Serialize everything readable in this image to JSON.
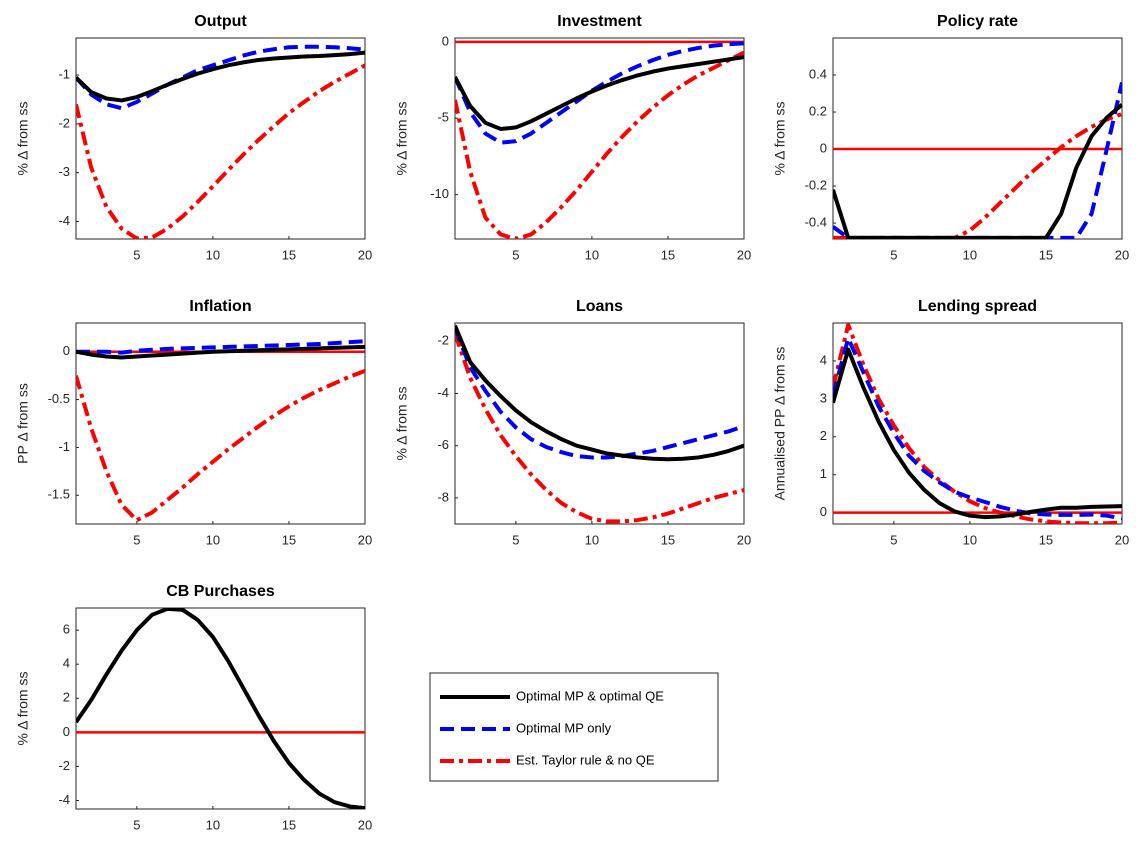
{
  "chart_data": [
    {
      "type": "line",
      "title": "Output",
      "ylabel": "% Δ from ss",
      "x": [
        1,
        2,
        3,
        4,
        5,
        6,
        7,
        8,
        9,
        10,
        11,
        12,
        13,
        14,
        15,
        16,
        17,
        18,
        19,
        20
      ],
      "xlim": [
        1,
        20
      ],
      "xticks": [
        5,
        10,
        15,
        20
      ],
      "ylim": [
        -4.36,
        -0.24
      ],
      "yticks": [
        -4,
        -3,
        -2,
        -1
      ],
      "series": [
        {
          "name": "Optimal MP & optimal QE",
          "color": "#000000",
          "style": "solid",
          "values": [
            -1.05,
            -1.35,
            -1.48,
            -1.52,
            -1.45,
            -1.33,
            -1.2,
            -1.08,
            -0.97,
            -0.88,
            -0.8,
            -0.74,
            -0.69,
            -0.66,
            -0.64,
            -0.62,
            -0.61,
            -0.59,
            -0.57,
            -0.54
          ]
        },
        {
          "name": "Optimal MP only",
          "color": "#0000ff",
          "style": "dashed",
          "values": [
            -1.05,
            -1.4,
            -1.6,
            -1.68,
            -1.55,
            -1.38,
            -1.2,
            -1.05,
            -0.9,
            -0.8,
            -0.7,
            -0.6,
            -0.52,
            -0.47,
            -0.43,
            -0.42,
            -0.42,
            -0.43,
            -0.45,
            -0.48
          ]
        },
        {
          "name": "Est. Taylor rule & no QE",
          "color": "#ff0000",
          "style": "dashdot",
          "values": [
            -1.6,
            -2.9,
            -3.7,
            -4.15,
            -4.35,
            -4.33,
            -4.15,
            -3.9,
            -3.6,
            -3.28,
            -2.95,
            -2.63,
            -2.33,
            -2.05,
            -1.78,
            -1.55,
            -1.33,
            -1.14,
            -0.97,
            -0.8
          ]
        }
      ]
    },
    {
      "type": "line",
      "title": "Investment",
      "ylabel": "% Δ from ss",
      "x": [
        1,
        2,
        3,
        4,
        5,
        6,
        7,
        8,
        9,
        10,
        11,
        12,
        13,
        14,
        15,
        16,
        17,
        18,
        19,
        20
      ],
      "xlim": [
        1,
        20
      ],
      "xticks": [
        5,
        10,
        15,
        20
      ],
      "ylim": [
        -12.9,
        0.25
      ],
      "yticks": [
        -10,
        -5,
        0
      ],
      "hline": 0,
      "series": [
        {
          "color": "#000000",
          "style": "solid",
          "values": [
            -2.3,
            -4.2,
            -5.3,
            -5.7,
            -5.6,
            -5.2,
            -4.7,
            -4.2,
            -3.7,
            -3.25,
            -2.85,
            -2.5,
            -2.2,
            -1.95,
            -1.75,
            -1.6,
            -1.45,
            -1.3,
            -1.15,
            -1.0
          ]
        },
        {
          "color": "#0000ff",
          "style": "dashed",
          "values": [
            -2.3,
            -4.6,
            -6.0,
            -6.6,
            -6.5,
            -6.0,
            -5.3,
            -4.6,
            -3.9,
            -3.2,
            -2.6,
            -2.05,
            -1.6,
            -1.2,
            -0.85,
            -0.6,
            -0.4,
            -0.25,
            -0.15,
            -0.1
          ]
        },
        {
          "color": "#ff0000",
          "style": "dashdot",
          "values": [
            -3.8,
            -8.5,
            -11.5,
            -12.6,
            -12.9,
            -12.6,
            -11.8,
            -10.8,
            -9.7,
            -8.5,
            -7.3,
            -6.2,
            -5.2,
            -4.3,
            -3.5,
            -2.8,
            -2.2,
            -1.7,
            -1.2,
            -0.7
          ]
        }
      ]
    },
    {
      "type": "line",
      "title": "Policy rate",
      "ylabel": "% Δ from ss",
      "x": [
        1,
        2,
        3,
        4,
        5,
        6,
        7,
        8,
        9,
        10,
        11,
        12,
        13,
        14,
        15,
        16,
        17,
        18,
        19,
        20
      ],
      "xlim": [
        1,
        20
      ],
      "xticks": [
        5,
        10,
        15,
        20
      ],
      "ylim": [
        -0.486,
        0.6
      ],
      "yticks": [
        -0.4,
        -0.2,
        0,
        0.2,
        0.4
      ],
      "hline": 0,
      "series": [
        {
          "color": "#000000",
          "style": "solid",
          "values": [
            -0.22,
            -0.48,
            -0.48,
            -0.48,
            -0.48,
            -0.48,
            -0.48,
            -0.48,
            -0.48,
            -0.48,
            -0.48,
            -0.48,
            -0.48,
            -0.48,
            -0.48,
            -0.35,
            -0.1,
            0.07,
            0.17,
            0.24
          ]
        },
        {
          "color": "#0000ff",
          "style": "dashed",
          "values": [
            -0.42,
            -0.48,
            -0.48,
            -0.48,
            -0.48,
            -0.48,
            -0.48,
            -0.48,
            -0.48,
            -0.48,
            -0.48,
            -0.48,
            -0.48,
            -0.48,
            -0.48,
            -0.48,
            -0.48,
            -0.35,
            0.0,
            0.36
          ]
        },
        {
          "color": "#ff0000",
          "style": "dashdot",
          "values": [
            -0.48,
            -0.48,
            -0.48,
            -0.48,
            -0.48,
            -0.48,
            -0.48,
            -0.48,
            -0.48,
            -0.44,
            -0.37,
            -0.29,
            -0.21,
            -0.13,
            -0.06,
            0.01,
            0.07,
            0.12,
            0.16,
            0.19
          ]
        }
      ]
    },
    {
      "type": "line",
      "title": "Inflation",
      "ylabel": "PP Δ from ss",
      "x": [
        1,
        2,
        3,
        4,
        5,
        6,
        7,
        8,
        9,
        10,
        11,
        12,
        13,
        14,
        15,
        16,
        17,
        18,
        19,
        20
      ],
      "xlim": [
        1,
        20
      ],
      "xticks": [
        5,
        10,
        15,
        20
      ],
      "ylim": [
        -1.8,
        0.3
      ],
      "yticks": [
        -1.5,
        -1,
        -0.5,
        0
      ],
      "hline": 0,
      "series": [
        {
          "color": "#000000",
          "style": "solid",
          "values": [
            0,
            -0.03,
            -0.05,
            -0.06,
            -0.05,
            -0.04,
            -0.03,
            -0.02,
            -0.01,
            0,
            0.005,
            0.01,
            0.015,
            0.02,
            0.025,
            0.03,
            0.035,
            0.04,
            0.045,
            0.05
          ]
        },
        {
          "color": "#0000ff",
          "style": "dashed",
          "values": [
            0,
            0,
            0,
            -0.01,
            0.01,
            0.02,
            0.03,
            0.035,
            0.04,
            0.045,
            0.05,
            0.055,
            0.06,
            0.065,
            0.07,
            0.075,
            0.08,
            0.09,
            0.1,
            0.11
          ]
        },
        {
          "color": "#ff0000",
          "style": "dashdot",
          "values": [
            -0.25,
            -0.8,
            -1.25,
            -1.6,
            -1.76,
            -1.68,
            -1.55,
            -1.42,
            -1.28,
            -1.15,
            -1.02,
            -0.9,
            -0.78,
            -0.67,
            -0.57,
            -0.48,
            -0.4,
            -0.33,
            -0.26,
            -0.2
          ]
        }
      ]
    },
    {
      "type": "line",
      "title": "Loans",
      "ylabel": "% Δ from ss",
      "x": [
        1,
        2,
        3,
        4,
        5,
        6,
        7,
        8,
        9,
        10,
        11,
        12,
        13,
        14,
        15,
        16,
        17,
        18,
        19,
        20
      ],
      "xlim": [
        1,
        20
      ],
      "xticks": [
        5,
        10,
        15,
        20
      ],
      "ylim": [
        -9.0,
        -1.3
      ],
      "yticks": [
        -8,
        -6,
        -4,
        -2
      ],
      "series": [
        {
          "color": "#000000",
          "style": "solid",
          "values": [
            -1.4,
            -2.8,
            -3.5,
            -4.1,
            -4.65,
            -5.1,
            -5.45,
            -5.75,
            -6.0,
            -6.15,
            -6.3,
            -6.38,
            -6.45,
            -6.5,
            -6.52,
            -6.5,
            -6.45,
            -6.35,
            -6.2,
            -6.0
          ]
        },
        {
          "color": "#0000ff",
          "style": "dashed",
          "values": [
            -1.5,
            -3.0,
            -3.9,
            -4.7,
            -5.3,
            -5.75,
            -6.05,
            -6.25,
            -6.4,
            -6.45,
            -6.45,
            -6.4,
            -6.3,
            -6.2,
            -6.05,
            -5.9,
            -5.75,
            -5.6,
            -5.45,
            -5.25
          ]
        },
        {
          "color": "#ff0000",
          "style": "dashdot",
          "values": [
            -1.7,
            -3.4,
            -4.6,
            -5.6,
            -6.4,
            -7.1,
            -7.7,
            -8.2,
            -8.55,
            -8.8,
            -8.9,
            -8.9,
            -8.85,
            -8.75,
            -8.6,
            -8.4,
            -8.2,
            -8.0,
            -7.85,
            -7.7
          ]
        }
      ]
    },
    {
      "type": "line",
      "title": "Lending spread",
      "ylabel": "Annualised PP Δ from ss",
      "x": [
        1,
        2,
        3,
        4,
        5,
        6,
        7,
        8,
        9,
        10,
        11,
        12,
        13,
        14,
        15,
        16,
        17,
        18,
        19,
        20
      ],
      "xlim": [
        1,
        20
      ],
      "xticks": [
        5,
        10,
        15,
        20
      ],
      "ylim": [
        -0.3,
        5.0
      ],
      "yticks": [
        0,
        1,
        2,
        3,
        4
      ],
      "hline": 0,
      "series": [
        {
          "color": "#000000",
          "style": "solid",
          "values": [
            2.9,
            4.3,
            3.3,
            2.4,
            1.65,
            1.05,
            0.6,
            0.25,
            0.03,
            -0.08,
            -0.12,
            -0.1,
            -0.05,
            0.02,
            0.08,
            0.13,
            0.13,
            0.15,
            0.16,
            0.17
          ]
        },
        {
          "color": "#0000ff",
          "style": "dashed",
          "values": [
            3.1,
            4.6,
            3.7,
            2.8,
            2.1,
            1.5,
            1.1,
            0.8,
            0.55,
            0.4,
            0.28,
            0.15,
            0.05,
            -0.02,
            -0.05,
            -0.06,
            -0.06,
            -0.05,
            -0.08,
            -0.15
          ]
        },
        {
          "color": "#ff0000",
          "style": "dashdot",
          "values": [
            3.3,
            4.95,
            3.9,
            3.0,
            2.3,
            1.7,
            1.2,
            0.85,
            0.55,
            0.3,
            0.12,
            0.0,
            -0.1,
            -0.18,
            -0.23,
            -0.26,
            -0.28,
            -0.28,
            -0.28,
            -0.26
          ]
        }
      ]
    },
    {
      "type": "line",
      "title": "CB Purchases",
      "ylabel": "% Δ from ss",
      "x": [
        1,
        2,
        3,
        4,
        5,
        6,
        7,
        8,
        9,
        10,
        11,
        12,
        13,
        14,
        15,
        16,
        17,
        18,
        19,
        20
      ],
      "xlim": [
        1,
        20
      ],
      "xticks": [
        5,
        10,
        15,
        20
      ],
      "ylim": [
        -4.5,
        7.3
      ],
      "yticks": [
        -4,
        -2,
        0,
        2,
        4,
        6
      ],
      "hline": 0,
      "series": [
        {
          "color": "#000000",
          "style": "solid",
          "values": [
            0.6,
            1.9,
            3.4,
            4.8,
            6.0,
            6.9,
            7.25,
            7.2,
            6.6,
            5.6,
            4.2,
            2.6,
            1.0,
            -0.5,
            -1.8,
            -2.8,
            -3.6,
            -4.1,
            -4.35,
            -4.45
          ]
        }
      ]
    }
  ]
}
